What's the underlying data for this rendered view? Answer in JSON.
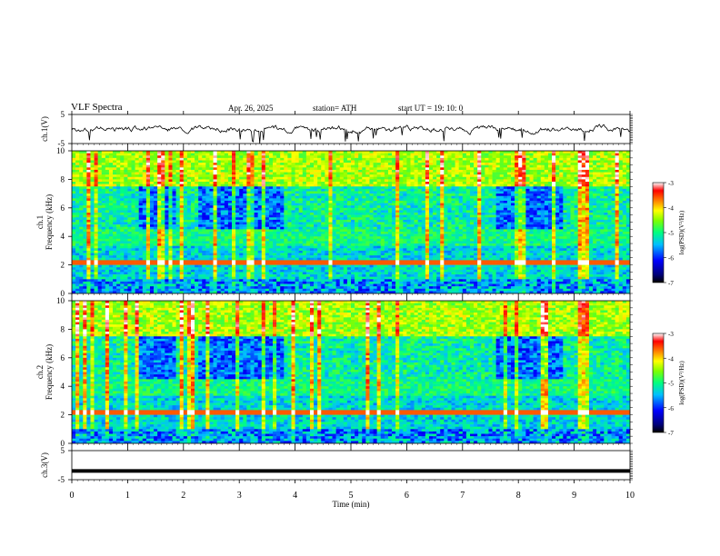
{
  "header": {
    "title": "VLF  Spectra",
    "date": "Apr. 26, 2025",
    "station": "station= ATH",
    "start_ut": "start  UT  =    19: 10: 0"
  },
  "chart_data": [
    {
      "id": "ch1-voltage",
      "type": "line",
      "ylabel": "ch.1(V)",
      "ylim": [
        -5,
        5
      ],
      "yticks": [
        5,
        -5
      ],
      "xlim": [
        0,
        10
      ],
      "description_of_trace": "noisy waveform around 0 V",
      "mean": 0
    },
    {
      "id": "ch1-spectrogram",
      "type": "heatmap",
      "ylabel": "ch.1\nFrequency (kHz)",
      "ylabel_lines": [
        "ch.1",
        "Frequency (kHz)"
      ],
      "ylim": [
        0,
        10
      ],
      "yticks": [
        0,
        2,
        4,
        6,
        8,
        10
      ],
      "xlim": [
        0,
        10
      ],
      "colorbar": {
        "label": "log(PSD)(V²/Hz)",
        "range": [
          -7,
          -3
        ],
        "ticks": [
          -3,
          -4,
          -5,
          -6,
          -7
        ]
      }
    },
    {
      "id": "ch2-spectrogram",
      "type": "heatmap",
      "ylabel": "ch.2\nFrequency (kHz)",
      "ylabel_lines": [
        "ch.2",
        "Frequency (kHz)"
      ],
      "ylim": [
        0,
        10
      ],
      "yticks": [
        0,
        2,
        4,
        6,
        8,
        10
      ],
      "xlim": [
        0,
        10
      ],
      "colorbar": {
        "label": "log(PSD)(V²/Hz)",
        "range": [
          -7,
          -3
        ],
        "ticks": [
          -3,
          -4,
          -5,
          -6,
          -7
        ]
      }
    },
    {
      "id": "ch3-voltage",
      "type": "line",
      "ylabel": "ch.3(V)",
      "ylim": [
        -5,
        5
      ],
      "yticks": [
        5,
        -5
      ],
      "xlim": [
        0,
        10
      ],
      "mean": -2
    }
  ],
  "x_axis": {
    "label": "Time  (min)",
    "ticks": [
      0,
      1,
      2,
      3,
      4,
      5,
      6,
      7,
      8,
      9,
      10
    ],
    "range": [
      0,
      10
    ]
  },
  "colors": {
    "axis": "#000000",
    "trace": "#000000"
  }
}
